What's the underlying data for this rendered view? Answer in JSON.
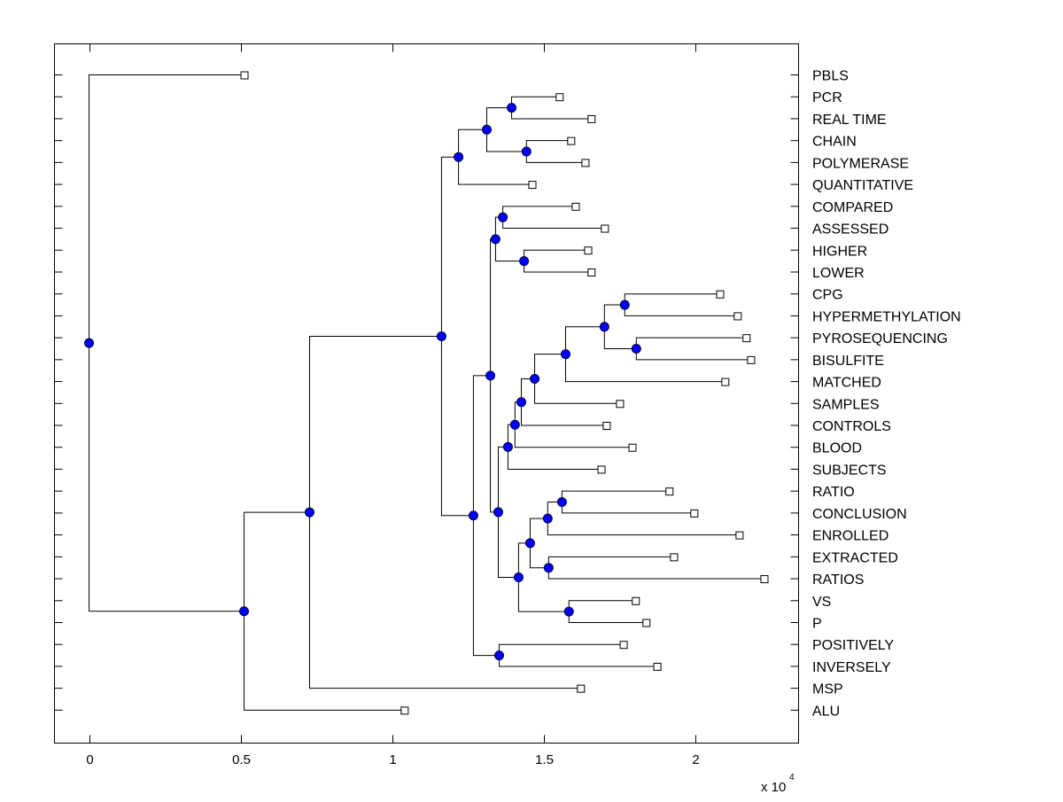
{
  "chart_data": {
    "type": "dendrogram",
    "orientation": "horizontal",
    "title": "",
    "xlabel": "",
    "ylabel": "",
    "x_multiplier_label": {
      "base": "x 10",
      "exponent": "4"
    },
    "xlim": [
      -0.114,
      2.339
    ],
    "xticks": [
      0,
      0.5,
      1,
      1.5,
      2
    ],
    "xtick_labels": [
      "0",
      "0.5",
      "1",
      "1.5",
      "2"
    ],
    "grid": false,
    "colors": {
      "internal_node": "#0000ff",
      "leaf_marker_fill": "#ffffff",
      "line": "#000000"
    },
    "leaves": [
      {
        "id": "PBLS",
        "label": "PBLS",
        "x": 0.511
      },
      {
        "id": "PCR",
        "label": "PCR",
        "x": 1.55
      },
      {
        "id": "REAL TIME",
        "label": "REAL TIME",
        "x": 1.655
      },
      {
        "id": "CHAIN",
        "label": "CHAIN",
        "x": 1.588
      },
      {
        "id": "POLYMERASE",
        "label": "POLYMERASE",
        "x": 1.635
      },
      {
        "id": "QUANTITATIVE",
        "label": "QUANTITATIVE",
        "x": 1.46
      },
      {
        "id": "COMPARED",
        "label": "COMPARED",
        "x": 1.603
      },
      {
        "id": "ASSESSED",
        "label": "ASSESSED",
        "x": 1.699
      },
      {
        "id": "HIGHER",
        "label": "HIGHER",
        "x": 1.644
      },
      {
        "id": "LOWER",
        "label": "LOWER",
        "x": 1.655
      },
      {
        "id": "CPG",
        "label": "CPG",
        "x": 2.079
      },
      {
        "id": "HYPERMETHYLATION",
        "label": "HYPERMETHYLATION",
        "x": 2.137
      },
      {
        "id": "PYROSEQUENCING",
        "label": "PYROSEQUENCING",
        "x": 2.166
      },
      {
        "id": "BISULFITE",
        "label": "BISULFITE",
        "x": 2.181
      },
      {
        "id": "MATCHED",
        "label": "MATCHED",
        "x": 2.096
      },
      {
        "id": "SAMPLES",
        "label": "SAMPLES",
        "x": 1.749
      },
      {
        "id": "CONTROLS",
        "label": "CONTROLS",
        "x": 1.705
      },
      {
        "id": "BLOOD",
        "label": "BLOOD",
        "x": 1.79
      },
      {
        "id": "SUBJECTS",
        "label": "SUBJECTS",
        "x": 1.688
      },
      {
        "id": "RATIO",
        "label": "RATIO",
        "x": 1.912
      },
      {
        "id": "CONCLUSION",
        "label": "CONCLUSION",
        "x": 1.994
      },
      {
        "id": "ENROLLED",
        "label": "ENROLLED",
        "x": 2.143
      },
      {
        "id": "EXTRACTED",
        "label": "EXTRACTED",
        "x": 1.927
      },
      {
        "id": "RATIOS",
        "label": "RATIOS",
        "x": 2.225
      },
      {
        "id": "VS",
        "label": "VS",
        "x": 1.801
      },
      {
        "id": "P",
        "label": "P",
        "x": 1.836
      },
      {
        "id": "POSITIVELY",
        "label": "POSITIVELY",
        "x": 1.761
      },
      {
        "id": "INVERSELY",
        "label": "INVERSELY",
        "x": 1.872
      },
      {
        "id": "MSP",
        "label": "MSP",
        "x": 1.62
      },
      {
        "id": "ALU",
        "label": "ALU",
        "x": 1.039
      }
    ],
    "internal_nodes": [
      {
        "id": "n1",
        "x": 1.393,
        "children": [
          "PCR",
          "REAL TIME"
        ]
      },
      {
        "id": "n2",
        "x": 1.442,
        "children": [
          "CHAIN",
          "POLYMERASE"
        ]
      },
      {
        "id": "n3",
        "x": 1.311,
        "children": [
          "n1",
          "n2"
        ]
      },
      {
        "id": "n4",
        "x": 1.218,
        "children": [
          "n3",
          "QUANTITATIVE"
        ]
      },
      {
        "id": "n5",
        "x": 1.364,
        "children": [
          "COMPARED",
          "ASSESSED"
        ]
      },
      {
        "id": "n6",
        "x": 1.434,
        "children": [
          "HIGHER",
          "LOWER"
        ]
      },
      {
        "id": "n7",
        "x": 1.34,
        "children": [
          "n5",
          "n6"
        ]
      },
      {
        "id": "n8",
        "x": 1.766,
        "children": [
          "CPG",
          "HYPERMETHYLATION"
        ]
      },
      {
        "id": "n9",
        "x": 1.804,
        "children": [
          "PYROSEQUENCING",
          "BISULFITE"
        ]
      },
      {
        "id": "n10",
        "x": 1.699,
        "children": [
          "n8",
          "n9"
        ]
      },
      {
        "id": "n11",
        "x": 1.571,
        "children": [
          "n10",
          "MATCHED"
        ]
      },
      {
        "id": "n12",
        "x": 1.469,
        "children": [
          "n11",
          "SAMPLES"
        ]
      },
      {
        "id": "n13",
        "x": 1.425,
        "children": [
          "n12",
          "CONTROLS"
        ]
      },
      {
        "id": "n14",
        "x": 1.404,
        "children": [
          "n13",
          "BLOOD"
        ]
      },
      {
        "id": "n15",
        "x": 1.381,
        "children": [
          "n14",
          "SUBJECTS"
        ]
      },
      {
        "id": "n16",
        "x": 1.559,
        "children": [
          "RATIO",
          "CONCLUSION"
        ]
      },
      {
        "id": "n17",
        "x": 1.512,
        "children": [
          "n16",
          "ENROLLED"
        ]
      },
      {
        "id": "n18",
        "x": 1.515,
        "children": [
          "EXTRACTED",
          "RATIOS"
        ]
      },
      {
        "id": "n19",
        "x": 1.454,
        "children": [
          "n17",
          "n18"
        ]
      },
      {
        "id": "n20",
        "x": 1.582,
        "children": [
          "VS",
          "P"
        ]
      },
      {
        "id": "n21",
        "x": 1.416,
        "children": [
          "n19",
          "n20"
        ]
      },
      {
        "id": "n22",
        "x": 1.349,
        "children": [
          "n15",
          "n21"
        ]
      },
      {
        "id": "n23",
        "x": 1.323,
        "children": [
          "n7",
          "n22"
        ]
      },
      {
        "id": "n24",
        "x": 1.352,
        "children": [
          "POSITIVELY",
          "INVERSELY"
        ]
      },
      {
        "id": "n25",
        "x": 1.267,
        "children": [
          "n23",
          "n24"
        ]
      },
      {
        "id": "n26",
        "x": 1.162,
        "children": [
          "n4",
          "n25"
        ]
      },
      {
        "id": "n27",
        "x": 0.727,
        "children": [
          "n26",
          "MSP"
        ]
      },
      {
        "id": "n28",
        "x": 0.511,
        "children": [
          "n27",
          "ALU"
        ]
      },
      {
        "id": "root",
        "x": 0.0,
        "children": [
          "PBLS",
          "n28"
        ]
      }
    ]
  }
}
